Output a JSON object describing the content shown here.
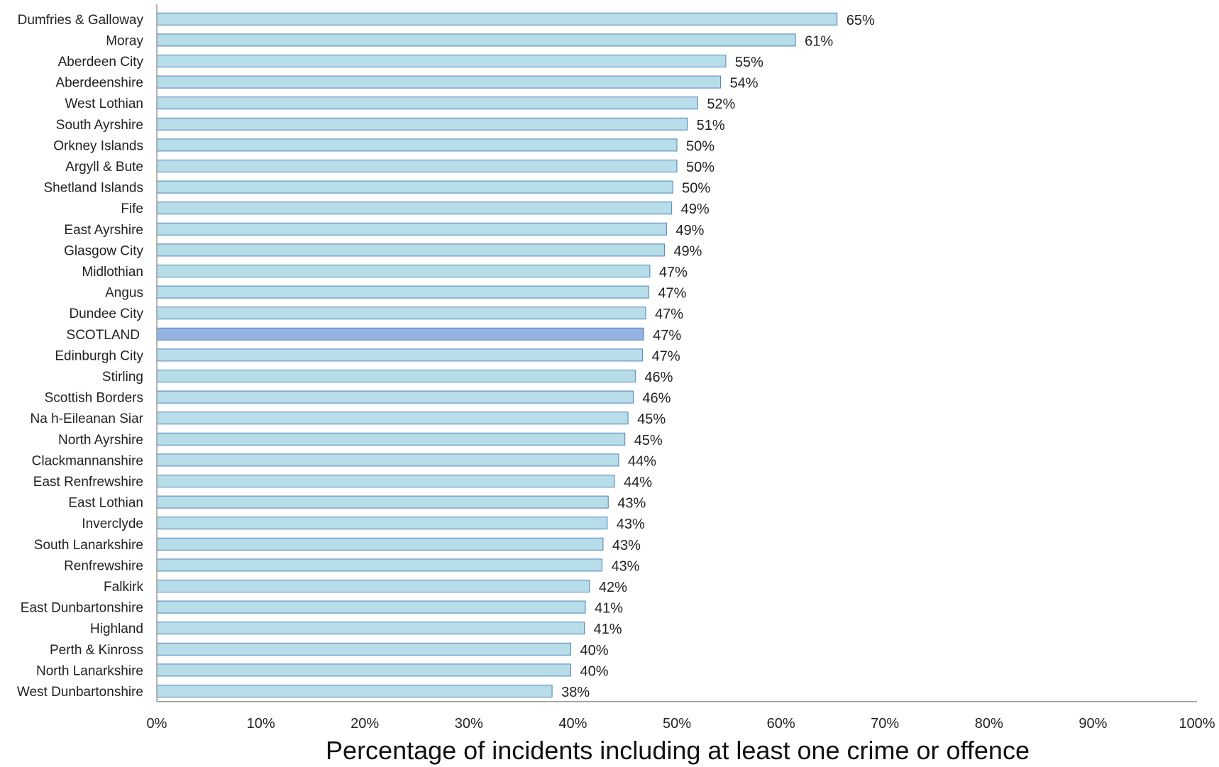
{
  "chart_data": {
    "type": "bar",
    "orientation": "horizontal",
    "title": "",
    "xlabel": "Percentage of incidents including at least one crime or offence",
    "ylabel": "",
    "xlim": [
      0,
      100
    ],
    "x_ticks": [
      "0%",
      "10%",
      "20%",
      "30%",
      "40%",
      "50%",
      "60%",
      "70%",
      "80%",
      "90%",
      "100%"
    ],
    "grid": false,
    "legend": "none",
    "bar_color": "#b7dde8",
    "highlight_color": "#95b3e0",
    "bar_edge_color": "#4f81bd",
    "highlight_category": "SCOTLAND",
    "categories": [
      "Dumfries & Galloway",
      "Moray",
      "Aberdeen City",
      "Aberdeenshire",
      "West Lothian",
      "South Ayrshire",
      "Orkney Islands",
      "Argyll & Bute",
      "Shetland Islands",
      "Fife",
      "East Ayrshire",
      "Glasgow City",
      "Midlothian",
      "Angus",
      "Dundee City",
      "SCOTLAND",
      "Edinburgh City",
      "Stirling",
      "Scottish Borders",
      "Na h-Eileanan Siar",
      "North Ayrshire",
      "Clackmannanshire",
      "East Renfrewshire",
      "East Lothian",
      "Inverclyde",
      "South Lanarkshire",
      "Renfrewshire",
      "Falkirk",
      "East Dunbartonshire",
      "Highland",
      "Perth & Kinross",
      "North Lanarkshire",
      "West Dunbartonshire"
    ],
    "values": [
      65.4,
      61.4,
      54.7,
      54.2,
      52.0,
      51.0,
      50.0,
      50.0,
      49.6,
      49.5,
      49.0,
      48.8,
      47.4,
      47.3,
      47.0,
      46.8,
      46.7,
      46.0,
      45.8,
      45.3,
      45.0,
      44.4,
      44.0,
      43.4,
      43.3,
      42.9,
      42.8,
      41.6,
      41.2,
      41.1,
      39.8,
      39.8,
      38.0
    ],
    "value_labels": [
      "65%",
      "61%",
      "55%",
      "54%",
      "52%",
      "51%",
      "50%",
      "50%",
      "50%",
      "49%",
      "49%",
      "49%",
      "47%",
      "47%",
      "47%",
      "47%",
      "47%",
      "46%",
      "46%",
      "45%",
      "45%",
      "44%",
      "44%",
      "43%",
      "43%",
      "43%",
      "43%",
      "42%",
      "41%",
      "41%",
      "40%",
      "40%",
      "38%"
    ]
  }
}
